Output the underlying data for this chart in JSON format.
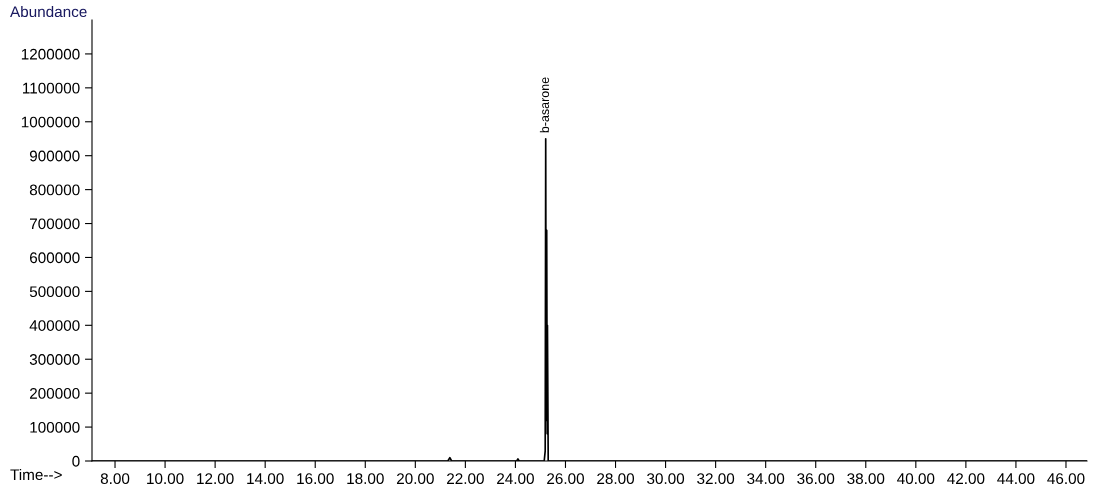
{
  "chart_data": {
    "type": "line",
    "xlabel": "Time-->",
    "ylabel": "Abundance",
    "series": [
      {
        "color": "#000000",
        "x": [
          7.08,
          8.0,
          12.0,
          16.0,
          20.0,
          21.3,
          21.38,
          21.45,
          22.5,
          24.05,
          24.1,
          24.15,
          25.15,
          25.19,
          25.21,
          25.23,
          25.25,
          25.27,
          25.28,
          25.31,
          30.0,
          36.0,
          42.0,
          46.84
        ],
        "values": [
          0,
          0,
          0,
          0,
          0,
          0,
          10000,
          0,
          0,
          0,
          6000,
          0,
          0,
          30000,
          950000,
          120000,
          680000,
          80000,
          400000,
          0,
          0,
          0,
          0,
          0
        ]
      }
    ],
    "annotations": [
      {
        "text": "b-asarone",
        "x": 25.21,
        "y": 950000
      }
    ],
    "xlim": [
      7.08,
      46.84
    ],
    "xticks": [
      {
        "value": 8,
        "label": "8.00"
      },
      {
        "value": 10,
        "label": "10.00"
      },
      {
        "value": 12,
        "label": "12.00"
      },
      {
        "value": 14,
        "label": "14.00"
      },
      {
        "value": 16,
        "label": "16.00"
      },
      {
        "value": 18,
        "label": "18.00"
      },
      {
        "value": 20,
        "label": "20.00"
      },
      {
        "value": 22,
        "label": "22.00"
      },
      {
        "value": 24,
        "label": "24.00"
      },
      {
        "value": 26,
        "label": "26.00"
      },
      {
        "value": 28,
        "label": "28.00"
      },
      {
        "value": 30,
        "label": "30.00"
      },
      {
        "value": 32,
        "label": "32.00"
      },
      {
        "value": 34,
        "label": "34.00"
      },
      {
        "value": 36,
        "label": "36.00"
      },
      {
        "value": 38,
        "label": "38.00"
      },
      {
        "value": 40,
        "label": "40.00"
      },
      {
        "value": 42,
        "label": "42.00"
      },
      {
        "value": 44,
        "label": "44.00"
      },
      {
        "value": 46,
        "label": "46.00"
      }
    ],
    "ylim": [
      0,
      1300000
    ],
    "yticks": [
      0,
      100000,
      200000,
      300000,
      400000,
      500000,
      600000,
      700000,
      800000,
      900000,
      1000000,
      1100000,
      1200000
    ],
    "grid": false,
    "legend": false,
    "marker": "none",
    "line_style": "solid"
  }
}
